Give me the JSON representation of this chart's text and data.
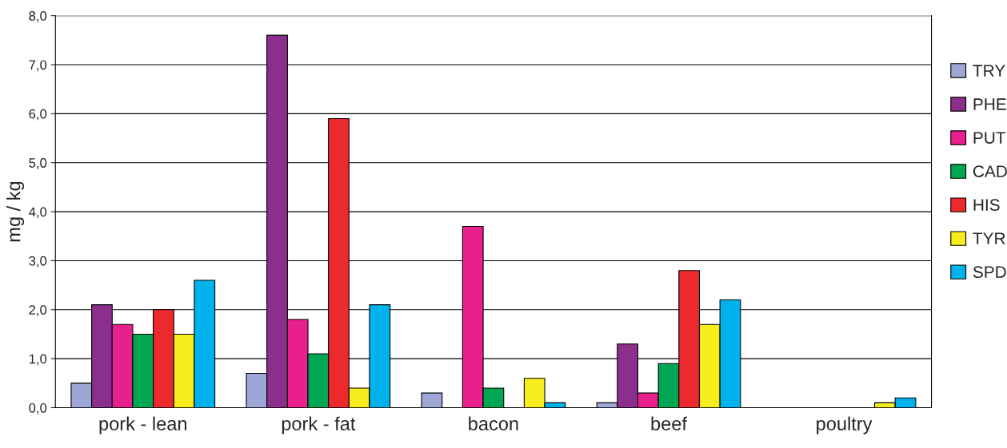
{
  "chart_data": {
    "type": "bar",
    "ylabel": "mg / kg",
    "categories": [
      "pork - lean",
      "pork - fat",
      "bacon",
      "beef",
      "poultry"
    ],
    "series": [
      {
        "name": "TRY",
        "color": "#9ea6d6",
        "values": [
          0.5,
          0.7,
          0.3,
          0.1,
          null
        ]
      },
      {
        "name": "PHE",
        "color": "#8c2f8c",
        "values": [
          2.1,
          7.6,
          null,
          1.3,
          null
        ]
      },
      {
        "name": "PUT",
        "color": "#e8208e",
        "values": [
          1.7,
          1.8,
          3.7,
          0.3,
          null
        ]
      },
      {
        "name": "CAD",
        "color": "#00a651",
        "values": [
          1.5,
          1.1,
          0.4,
          0.9,
          null
        ]
      },
      {
        "name": "HIS",
        "color": "#ec2a2e",
        "values": [
          2.0,
          5.9,
          null,
          2.8,
          null
        ]
      },
      {
        "name": "TYR",
        "color": "#f7ec1c",
        "values": [
          1.5,
          0.4,
          0.6,
          1.7,
          0.1
        ]
      },
      {
        "name": "SPD",
        "color": "#00b2ec",
        "values": [
          2.6,
          2.1,
          0.1,
          2.2,
          0.2
        ]
      }
    ],
    "ylim": [
      0,
      8
    ],
    "yticks": [
      {
        "value": 0,
        "label": "0,0"
      },
      {
        "value": 1,
        "label": "1,0"
      },
      {
        "value": 2,
        "label": "2,0"
      },
      {
        "value": 3,
        "label": "3,0"
      },
      {
        "value": 4,
        "label": "4,0"
      },
      {
        "value": 5,
        "label": "5,0"
      },
      {
        "value": 6,
        "label": "6,0"
      },
      {
        "value": 7,
        "label": "7,0"
      },
      {
        "value": 8,
        "label": "8,0"
      }
    ],
    "grid": "y",
    "legend": "right"
  }
}
